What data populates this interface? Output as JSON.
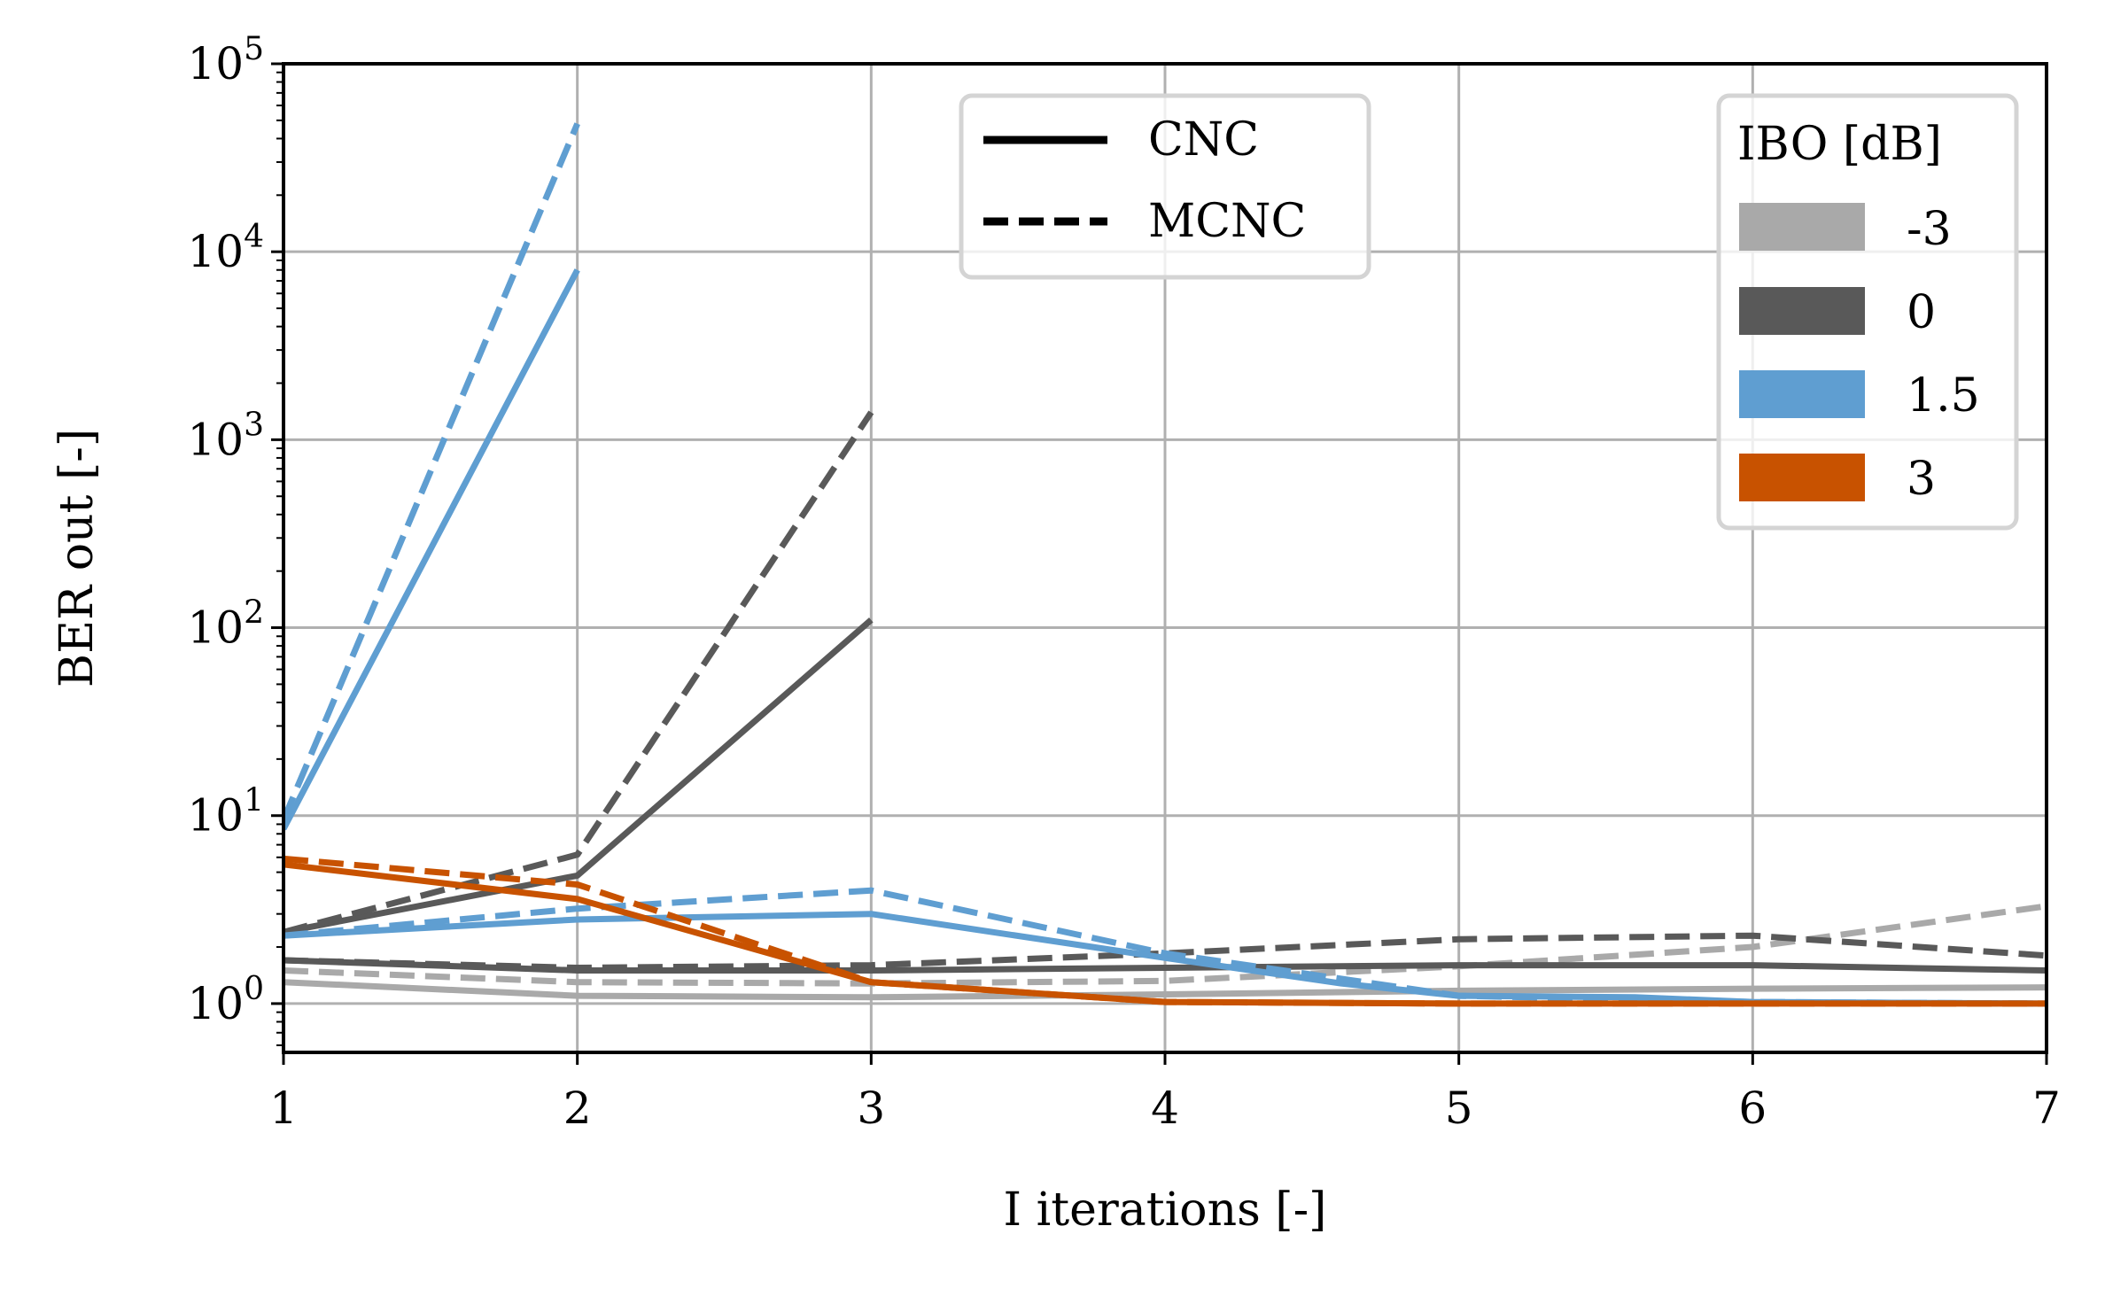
{
  "chart_data": {
    "type": "line",
    "xlabel": "I iterations [-]",
    "ylabel": "BER out [-]",
    "xlim": [
      1,
      7
    ],
    "ylim": [
      0.55,
      100000
    ],
    "yscale": "log",
    "grid": true,
    "x_ticks": [
      "1",
      "2",
      "3",
      "4",
      "5",
      "6",
      "7"
    ],
    "y_ticks": [
      {
        "base": "10",
        "exp": "0",
        "value": 1
      },
      {
        "base": "10",
        "exp": "1",
        "value": 10
      },
      {
        "base": "10",
        "exp": "2",
        "value": 100
      },
      {
        "base": "10",
        "exp": "3",
        "value": 1000
      },
      {
        "base": "10",
        "exp": "4",
        "value": 10000
      },
      {
        "base": "10",
        "exp": "5",
        "value": 100000
      }
    ],
    "style_legend": {
      "placement": "upper-center",
      "entries": [
        {
          "label": "CNC",
          "linestyle": "solid"
        },
        {
          "label": "MCNC",
          "linestyle": "dashed"
        }
      ]
    },
    "color_legend": {
      "placement": "upper-right",
      "title": "IBO [dB]",
      "entries": [
        {
          "label": "-3",
          "color": "#a9a9a9"
        },
        {
          "label": "0",
          "color": "#595959"
        },
        {
          "label": "1.5",
          "color": "#5f9ed1"
        },
        {
          "label": "3",
          "color": "#c85200"
        }
      ]
    },
    "series": [
      {
        "ibo": "-3",
        "method": "CNC",
        "color": "#a9a9a9",
        "linestyle": "solid",
        "x": [
          1,
          2,
          3,
          4,
          5,
          6,
          7
        ],
        "y": [
          1.3,
          1.1,
          1.08,
          1.12,
          1.17,
          1.2,
          1.22
        ]
      },
      {
        "ibo": "-3",
        "method": "MCNC",
        "color": "#a9a9a9",
        "linestyle": "dashed",
        "x": [
          1,
          2,
          3,
          4,
          5,
          6,
          7
        ],
        "y": [
          1.5,
          1.3,
          1.28,
          1.32,
          1.58,
          2.0,
          3.3
        ]
      },
      {
        "ibo": "0",
        "method": "CNC",
        "color": "#595959",
        "linestyle": "solid",
        "x": [
          1,
          2,
          3
        ],
        "y": [
          2.4,
          4.8,
          110
        ]
      },
      {
        "ibo": "0",
        "method": "MCNC",
        "color": "#595959",
        "linestyle": "dashed",
        "x": [
          1,
          2,
          3
        ],
        "y": [
          2.4,
          6.2,
          1400
        ]
      },
      {
        "ibo": "0",
        "method": "CNC",
        "color": "#595959",
        "linestyle": "solid",
        "x": [
          1,
          2,
          3,
          4,
          5,
          6,
          7
        ],
        "y": [
          1.7,
          1.5,
          1.5,
          1.55,
          1.6,
          1.6,
          1.5
        ]
      },
      {
        "ibo": "0",
        "method": "MCNC",
        "color": "#595959",
        "linestyle": "dashed",
        "x": [
          1,
          2,
          3,
          4,
          5,
          6,
          7
        ],
        "y": [
          1.7,
          1.55,
          1.6,
          1.85,
          2.2,
          2.3,
          1.8
        ]
      },
      {
        "ibo": "1.5",
        "method": "CNC",
        "color": "#5f9ed1",
        "linestyle": "solid",
        "x": [
          1,
          2
        ],
        "y": [
          8.5,
          8000
        ]
      },
      {
        "ibo": "1.5",
        "method": "MCNC",
        "color": "#5f9ed1",
        "linestyle": "dashed",
        "x": [
          1,
          2
        ],
        "y": [
          9.5,
          48000
        ]
      },
      {
        "ibo": "1.5",
        "method": "CNC",
        "color": "#5f9ed1",
        "linestyle": "solid",
        "x": [
          1,
          2,
          3,
          4,
          4.6,
          5,
          5.6,
          6,
          7
        ],
        "y": [
          2.3,
          2.8,
          3.0,
          1.75,
          1.28,
          1.1,
          1.08,
          1.02,
          1.0
        ]
      },
      {
        "ibo": "1.5",
        "method": "MCNC",
        "color": "#5f9ed1",
        "linestyle": "dashed",
        "x": [
          1,
          2,
          3,
          4,
          5,
          6,
          7
        ],
        "y": [
          2.3,
          3.2,
          4.0,
          1.85,
          1.1,
          1.02,
          1.0
        ]
      },
      {
        "ibo": "3",
        "method": "CNC",
        "color": "#c85200",
        "linestyle": "solid",
        "x": [
          1,
          2,
          3,
          4,
          5,
          6,
          7
        ],
        "y": [
          5.5,
          3.6,
          1.3,
          1.02,
          1.0,
          1.0,
          1.0
        ]
      },
      {
        "ibo": "3",
        "method": "MCNC",
        "color": "#c85200",
        "linestyle": "dashed",
        "x": [
          1,
          2,
          3,
          4,
          5,
          6,
          7
        ],
        "y": [
          5.9,
          4.3,
          1.3,
          1.02,
          1.0,
          1.0,
          1.0
        ]
      }
    ]
  }
}
